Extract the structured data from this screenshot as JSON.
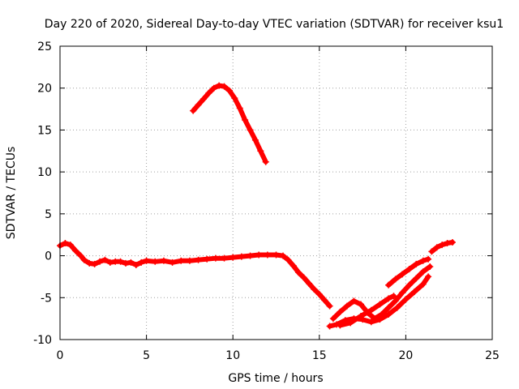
{
  "chart_data": {
    "type": "scatter",
    "title": "Day 220 of 2020, Sidereal Day-to-day VTEC variation (SDTVAR) for receiver ksu1",
    "xlabel": "GPS time / hours",
    "ylabel": "SDTVAR / TECUs",
    "xlim": [
      0,
      25
    ],
    "ylim": [
      -10,
      25
    ],
    "xticks": [
      0,
      5,
      10,
      15,
      20,
      25
    ],
    "yticks": [
      -10,
      -5,
      0,
      5,
      10,
      15,
      20,
      25
    ],
    "grid": true,
    "marker": "+",
    "color": "#ff0000",
    "series": [
      {
        "name": "main",
        "points": [
          [
            0.0,
            1.2
          ],
          [
            0.3,
            1.5
          ],
          [
            0.6,
            1.3
          ],
          [
            0.9,
            0.6
          ],
          [
            1.2,
            0.0
          ],
          [
            1.4,
            -0.5
          ],
          [
            1.7,
            -0.9
          ],
          [
            2.0,
            -1.0
          ],
          [
            2.3,
            -0.7
          ],
          [
            2.6,
            -0.5
          ],
          [
            2.9,
            -0.8
          ],
          [
            3.2,
            -0.7
          ],
          [
            3.5,
            -0.7
          ],
          [
            3.8,
            -0.9
          ],
          [
            4.1,
            -0.8
          ],
          [
            4.4,
            -1.1
          ],
          [
            4.7,
            -0.8
          ],
          [
            5.0,
            -0.6
          ],
          [
            5.5,
            -0.7
          ],
          [
            6.0,
            -0.6
          ],
          [
            6.5,
            -0.8
          ],
          [
            7.0,
            -0.6
          ],
          [
            7.5,
            -0.6
          ],
          [
            8.0,
            -0.5
          ],
          [
            8.5,
            -0.4
          ],
          [
            9.0,
            -0.3
          ],
          [
            9.5,
            -0.3
          ],
          [
            10.0,
            -0.2
          ],
          [
            10.5,
            -0.1
          ],
          [
            11.0,
            0.0
          ],
          [
            11.5,
            0.1
          ],
          [
            12.0,
            0.1
          ],
          [
            12.5,
            0.1
          ],
          [
            12.9,
            0.0
          ],
          [
            13.2,
            -0.5
          ],
          [
            13.5,
            -1.2
          ],
          [
            13.8,
            -2.0
          ],
          [
            14.1,
            -2.6
          ],
          [
            14.4,
            -3.3
          ],
          [
            14.7,
            -4.0
          ],
          [
            15.0,
            -4.6
          ],
          [
            15.3,
            -5.3
          ],
          [
            15.6,
            -6.0
          ]
        ]
      },
      {
        "name": "arc",
        "points": [
          [
            7.7,
            17.3
          ],
          [
            8.0,
            18.0
          ],
          [
            8.3,
            18.7
          ],
          [
            8.6,
            19.4
          ],
          [
            8.9,
            20.0
          ],
          [
            9.2,
            20.3
          ],
          [
            9.5,
            20.2
          ],
          [
            9.8,
            19.7
          ],
          [
            10.1,
            18.8
          ],
          [
            10.4,
            17.6
          ],
          [
            10.7,
            16.2
          ],
          [
            11.0,
            15.0
          ],
          [
            11.3,
            13.8
          ],
          [
            11.6,
            12.5
          ],
          [
            11.9,
            11.2
          ]
        ]
      },
      {
        "name": "trough-1",
        "points": [
          [
            15.6,
            -8.4
          ],
          [
            16.0,
            -8.2
          ],
          [
            16.5,
            -7.7
          ],
          [
            17.0,
            -7.5
          ],
          [
            17.5,
            -7.6
          ],
          [
            18.0,
            -7.9
          ],
          [
            18.5,
            -7.6
          ],
          [
            19.0,
            -7.0
          ],
          [
            19.5,
            -6.2
          ],
          [
            20.0,
            -5.2
          ],
          [
            20.5,
            -4.3
          ],
          [
            21.0,
            -3.4
          ],
          [
            21.3,
            -2.5
          ]
        ]
      },
      {
        "name": "trough-2",
        "points": [
          [
            15.8,
            -7.5
          ],
          [
            16.2,
            -6.7
          ],
          [
            16.6,
            -6.0
          ],
          [
            17.0,
            -5.4
          ],
          [
            17.4,
            -5.8
          ],
          [
            17.8,
            -6.8
          ],
          [
            18.2,
            -7.5
          ],
          [
            18.6,
            -7.0
          ],
          [
            19.0,
            -6.2
          ],
          [
            19.4,
            -5.4
          ],
          [
            19.8,
            -4.4
          ],
          [
            20.2,
            -3.5
          ],
          [
            20.6,
            -2.7
          ],
          [
            21.0,
            -1.9
          ],
          [
            21.4,
            -1.3
          ]
        ]
      },
      {
        "name": "trough-3",
        "points": [
          [
            16.2,
            -8.3
          ],
          [
            16.8,
            -8.0
          ],
          [
            17.4,
            -7.2
          ],
          [
            18.0,
            -6.5
          ],
          [
            18.5,
            -5.8
          ],
          [
            19.0,
            -5.1
          ],
          [
            19.3,
            -4.8
          ]
        ]
      },
      {
        "name": "rise",
        "points": [
          [
            19.0,
            -3.5
          ],
          [
            19.4,
            -2.8
          ],
          [
            19.8,
            -2.2
          ],
          [
            20.2,
            -1.6
          ],
          [
            20.6,
            -1.0
          ],
          [
            21.0,
            -0.6
          ],
          [
            21.3,
            -0.4
          ]
        ]
      },
      {
        "name": "tail",
        "points": [
          [
            21.5,
            0.5
          ],
          [
            21.8,
            1.0
          ],
          [
            22.1,
            1.3
          ],
          [
            22.4,
            1.5
          ],
          [
            22.7,
            1.6
          ]
        ]
      }
    ]
  }
}
